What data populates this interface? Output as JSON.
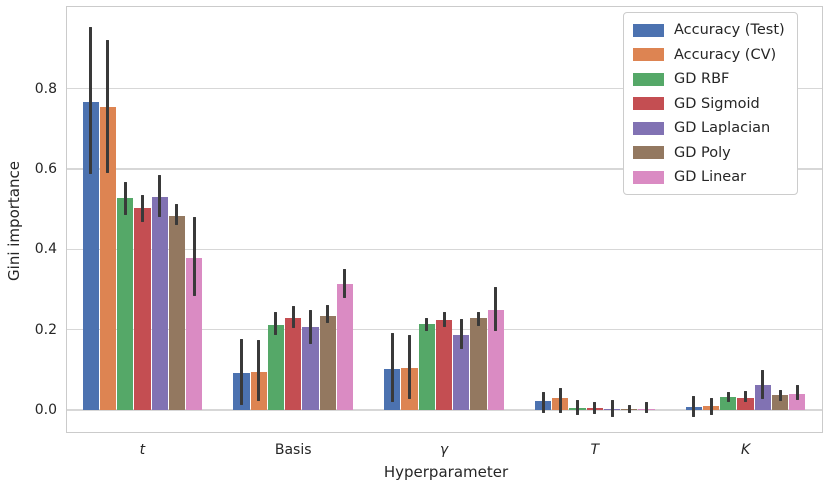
{
  "chart_data": {
    "type": "bar",
    "title": "",
    "xlabel": "Hyperparameter",
    "ylabel": "Gini importance",
    "categories": [
      {
        "label": "t",
        "italic": true
      },
      {
        "label": "Basis",
        "italic": false
      },
      {
        "label": "γ",
        "italic": true
      },
      {
        "label": "T",
        "italic": true
      },
      {
        "label": "K",
        "italic": true
      }
    ],
    "y_ticks": [
      {
        "label": "0.0",
        "value": 0.0
      },
      {
        "label": "0.2",
        "value": 0.2
      },
      {
        "label": "0.4",
        "value": 0.4
      },
      {
        "label": "0.6",
        "value": 0.6
      },
      {
        "label": "0.8",
        "value": 0.8
      }
    ],
    "ylim": [
      -0.052,
      1.003
    ],
    "grid": true,
    "legend_position": "upper right",
    "group_width_fraction": 0.8,
    "error_bar_color": "#393939",
    "series": [
      {
        "name": "Accuracy (Test)",
        "color": "#4C72B0",
        "values": [
          0.766,
          0.092,
          0.103,
          0.022,
          0.008
        ],
        "err_lo": [
          0.588,
          0.012,
          0.019,
          -0.008,
          -0.018
        ],
        "err_hi": [
          0.952,
          0.178,
          0.193,
          0.044,
          0.035
        ]
      },
      {
        "name": "Accuracy (CV)",
        "color": "#DD8452",
        "values": [
          0.753,
          0.095,
          0.105,
          0.03,
          0.011
        ],
        "err_lo": [
          0.59,
          0.023,
          0.027,
          -0.006,
          -0.012
        ],
        "err_hi": [
          0.921,
          0.174,
          0.186,
          0.056,
          0.031
        ]
      },
      {
        "name": "GD RBF",
        "color": "#55A868",
        "values": [
          0.527,
          0.212,
          0.215,
          0.004,
          0.033
        ],
        "err_lo": [
          0.485,
          0.188,
          0.196,
          -0.012,
          0.021
        ],
        "err_hi": [
          0.568,
          0.245,
          0.23,
          0.025,
          0.044
        ]
      },
      {
        "name": "GD Sigmoid",
        "color": "#C44E52",
        "values": [
          0.502,
          0.229,
          0.225,
          0.004,
          0.031
        ],
        "err_lo": [
          0.469,
          0.204,
          0.207,
          -0.01,
          0.019
        ],
        "err_hi": [
          0.535,
          0.258,
          0.243,
          0.019,
          0.048
        ]
      },
      {
        "name": "GD Laplacian",
        "color": "#8172B3",
        "values": [
          0.529,
          0.207,
          0.186,
          0.003,
          0.062
        ],
        "err_lo": [
          0.481,
          0.165,
          0.152,
          -0.016,
          0.027
        ],
        "err_hi": [
          0.585,
          0.249,
          0.226,
          0.026,
          0.1
        ]
      },
      {
        "name": "GD Poly",
        "color": "#937860",
        "values": [
          0.484,
          0.235,
          0.228,
          0.003,
          0.037
        ],
        "err_lo": [
          0.461,
          0.216,
          0.21,
          -0.007,
          0.023
        ],
        "err_hi": [
          0.514,
          0.262,
          0.245,
          0.012,
          0.05
        ]
      },
      {
        "name": "GD Linear",
        "color": "#DA8BC3",
        "values": [
          0.378,
          0.314,
          0.248,
          0.003,
          0.041
        ],
        "err_lo": [
          0.283,
          0.28,
          0.198,
          -0.008,
          0.025
        ],
        "err_hi": [
          0.48,
          0.352,
          0.307,
          0.021,
          0.062
        ]
      }
    ]
  }
}
